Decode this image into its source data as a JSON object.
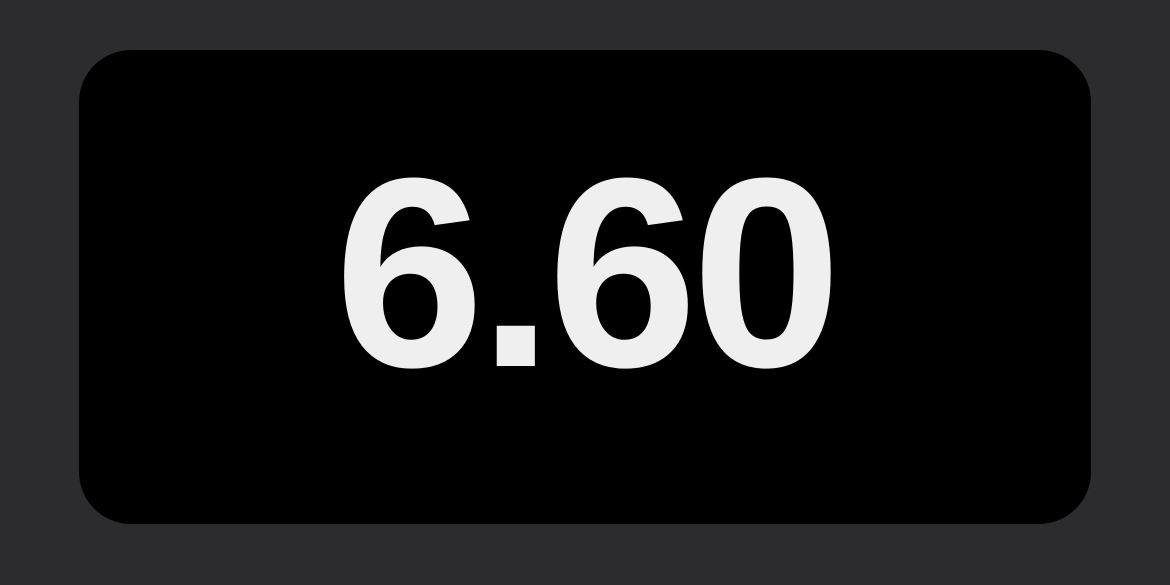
{
  "display": {
    "value": "6.60"
  },
  "colors": {
    "page_background": "#2c2c2e",
    "panel_background": "#000000",
    "text": "#efefef"
  }
}
